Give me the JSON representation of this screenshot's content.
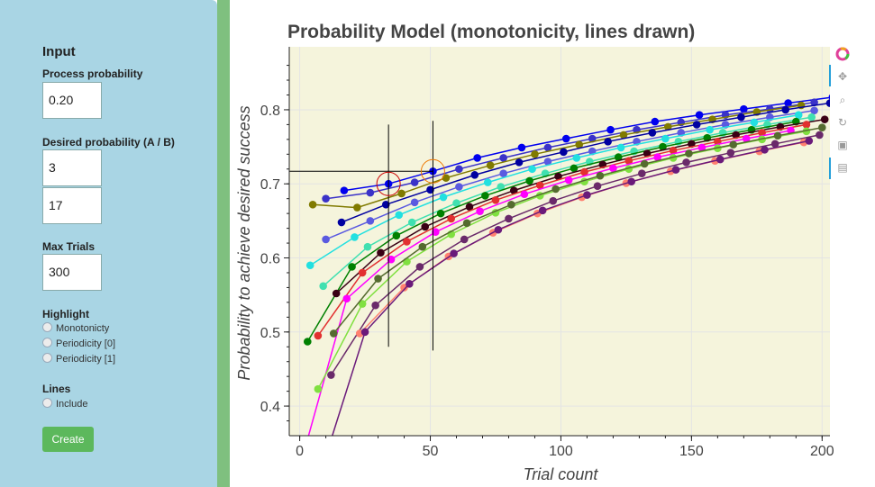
{
  "sidebar": {
    "title": "Input",
    "process_probability": {
      "label": "Process probability",
      "value": "0.20"
    },
    "desired_probability": {
      "label": "Desired probability (A / B)",
      "a": "3",
      "b": "17"
    },
    "max_trials": {
      "label": "Max Trials",
      "value": "300"
    },
    "highlight": {
      "label": "Highlight",
      "options": [
        "Monotonicty",
        "Periodicity [0]",
        "Periodicity [1]"
      ]
    },
    "lines": {
      "label": "Lines",
      "options": [
        "Include"
      ]
    },
    "create_label": "Create"
  },
  "toolbar": {
    "icons": [
      "bokeh-logo-icon",
      "pan-icon",
      "box-zoom-icon",
      "reset-icon",
      "save-icon",
      "hover-icon"
    ]
  },
  "chart_data": {
    "type": "line",
    "title": "Probability Model (monotonicity, lines drawn)",
    "xlabel": "Trial count",
    "ylabel": "Probability to achieve desired success",
    "xlim": [
      -4,
      203
    ],
    "ylim": [
      0.36,
      0.885
    ],
    "xticks": [
      0,
      50,
      100,
      150,
      200
    ],
    "yticks": [
      0.4,
      0.5,
      0.6,
      0.7,
      0.8
    ],
    "background": "#f5f4dc",
    "grid": true,
    "highlight_points": [
      {
        "x": 34,
        "y": 0.7,
        "color": "#cc0000"
      },
      {
        "x": 51,
        "y": 0.717,
        "color": "#ee7700"
      }
    ],
    "crosshair_lines": [
      {
        "x": 34,
        "y0": 0.48,
        "y1": 0.78
      },
      {
        "x": 51,
        "y0": 0.475,
        "y1": 0.785
      }
    ],
    "hline": {
      "y": 0.717,
      "x0": -4,
      "x1": 51
    },
    "series": [
      {
        "color": "#0000ee",
        "x": [
          17,
          34,
          51,
          68,
          85,
          102,
          119,
          136,
          153,
          170,
          187,
          204
        ],
        "y": [
          0.691,
          0.7,
          0.717,
          0.735,
          0.749,
          0.761,
          0.773,
          0.784,
          0.793,
          0.801,
          0.809,
          0.817
        ]
      },
      {
        "color": "#3a32c8",
        "x": [
          10,
          27,
          44,
          61,
          78,
          95,
          112,
          129,
          146,
          163,
          180,
          197
        ],
        "y": [
          0.68,
          0.688,
          0.702,
          0.72,
          0.735,
          0.749,
          0.761,
          0.773,
          0.783,
          0.793,
          0.801,
          0.81
        ]
      },
      {
        "color": "#807a00",
        "x": [
          5,
          22,
          39,
          56,
          73,
          90,
          107,
          124,
          141,
          158,
          175,
          192
        ],
        "y": [
          0.672,
          0.668,
          0.687,
          0.708,
          0.725,
          0.74,
          0.753,
          0.766,
          0.777,
          0.787,
          0.797,
          0.806
        ]
      },
      {
        "color": "#0000a0",
        "x": [
          16,
          33,
          50,
          67,
          84,
          101,
          118,
          135,
          152,
          169,
          186,
          203
        ],
        "y": [
          0.648,
          0.672,
          0.692,
          0.712,
          0.729,
          0.743,
          0.757,
          0.769,
          0.78,
          0.79,
          0.8,
          0.809
        ]
      },
      {
        "color": "#5a5ae0",
        "x": [
          10,
          27,
          44,
          61,
          78,
          95,
          112,
          129,
          146,
          163,
          180,
          197
        ],
        "y": [
          0.625,
          0.65,
          0.675,
          0.696,
          0.714,
          0.73,
          0.744,
          0.757,
          0.769,
          0.78,
          0.79,
          0.799
        ]
      },
      {
        "color": "#22e0e0",
        "x": [
          4,
          21,
          38,
          55,
          72,
          89,
          106,
          123,
          140,
          157,
          174,
          191
        ],
        "y": [
          0.59,
          0.628,
          0.658,
          0.682,
          0.702,
          0.72,
          0.735,
          0.749,
          0.761,
          0.773,
          0.783,
          0.793
        ]
      },
      {
        "color": "#40e0b0",
        "x": [
          9,
          26,
          43,
          60,
          77,
          94,
          111,
          128,
          145,
          162,
          179,
          196
        ],
        "y": [
          0.562,
          0.615,
          0.648,
          0.674,
          0.696,
          0.714,
          0.73,
          0.744,
          0.757,
          0.769,
          0.78,
          0.79
        ]
      },
      {
        "color": "#008000",
        "x": [
          3,
          20,
          37,
          54,
          71,
          88,
          105,
          122,
          139,
          156,
          173,
          190
        ],
        "y": [
          0.487,
          0.588,
          0.63,
          0.66,
          0.684,
          0.704,
          0.721,
          0.736,
          0.75,
          0.762,
          0.773,
          0.784
        ]
      },
      {
        "color": "#3a0014",
        "x": [
          14,
          31,
          48,
          65,
          82,
          99,
          116,
          133,
          150,
          167,
          184,
          201
        ],
        "y": [
          0.552,
          0.607,
          0.642,
          0.669,
          0.691,
          0.71,
          0.726,
          0.741,
          0.754,
          0.766,
          0.777,
          0.787
        ]
      },
      {
        "color": "#e23030",
        "x": [
          7,
          24,
          41,
          58,
          75,
          92,
          109,
          126,
          143,
          160,
          177,
          194
        ],
        "y": [
          0.495,
          0.58,
          0.622,
          0.653,
          0.678,
          0.698,
          0.716,
          0.731,
          0.745,
          0.757,
          0.769,
          0.78
        ]
      },
      {
        "color": "#ff00ff",
        "x": [
          1,
          18,
          35,
          52,
          69,
          86,
          103,
          120,
          137,
          154,
          171,
          188
        ],
        "y": [
          0.33,
          0.545,
          0.598,
          0.635,
          0.663,
          0.686,
          0.705,
          0.721,
          0.736,
          0.749,
          0.761,
          0.772
        ]
      },
      {
        "color": "#80e040",
        "x": [
          7,
          24,
          41,
          58,
          75,
          92,
          109,
          126,
          143,
          160,
          177,
          194
        ],
        "y": [
          0.423,
          0.538,
          0.595,
          0.632,
          0.661,
          0.684,
          0.703,
          0.72,
          0.735,
          0.748,
          0.76,
          0.771
        ]
      },
      {
        "color": "#556b2f",
        "x": [
          13,
          30,
          47,
          64,
          81,
          98,
          115,
          132,
          149,
          166,
          183,
          200
        ],
        "y": [
          0.498,
          0.572,
          0.615,
          0.647,
          0.672,
          0.693,
          0.711,
          0.727,
          0.741,
          0.753,
          0.765,
          0.776
        ]
      },
      {
        "color": "#6a2a6a",
        "x": [
          12,
          29,
          46,
          63,
          80,
          97,
          114,
          131,
          148,
          165,
          182,
          199
        ],
        "y": [
          0.442,
          0.536,
          0.588,
          0.625,
          0.653,
          0.677,
          0.697,
          0.714,
          0.729,
          0.742,
          0.754,
          0.766
        ]
      },
      {
        "color": "#ff8070",
        "x": [
          23,
          40,
          57,
          74,
          91,
          108,
          125,
          142,
          159,
          176,
          193
        ],
        "y": [
          0.498,
          0.56,
          0.602,
          0.634,
          0.66,
          0.682,
          0.701,
          0.717,
          0.731,
          0.744,
          0.756
        ]
      },
      {
        "color": "#6a1a7a",
        "x": [
          8,
          25,
          42,
          59,
          76,
          93,
          110,
          127,
          144,
          161,
          178,
          195
        ],
        "y": [
          0.31,
          0.5,
          0.565,
          0.606,
          0.638,
          0.664,
          0.685,
          0.703,
          0.719,
          0.733,
          0.746,
          0.758
        ]
      }
    ]
  }
}
